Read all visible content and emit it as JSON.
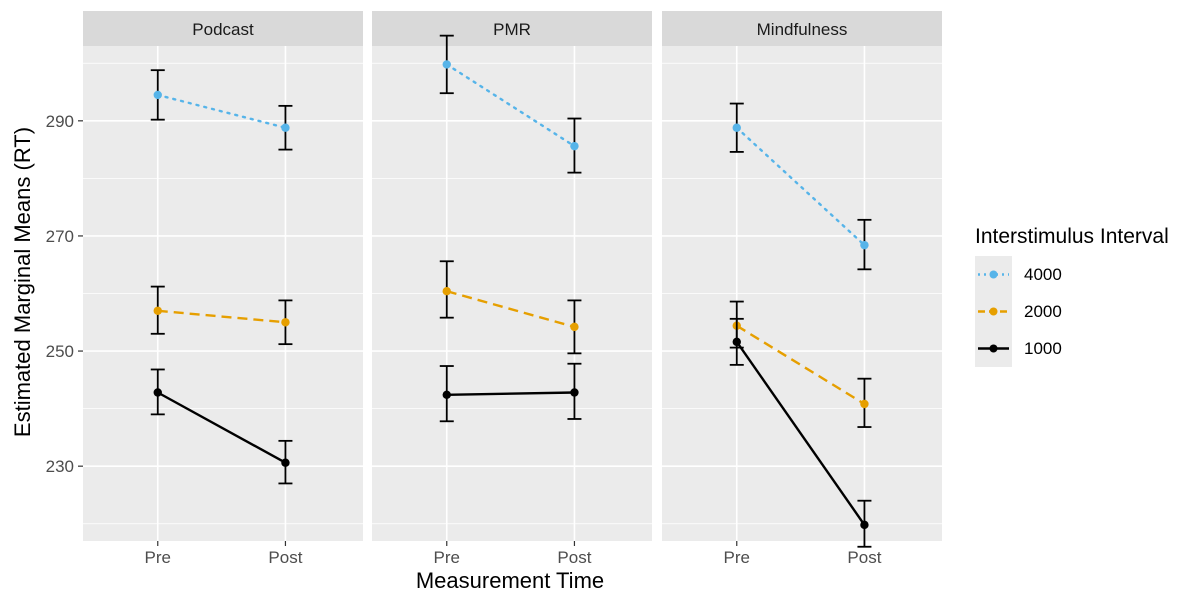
{
  "chart_data": {
    "type": "line",
    "xlabel": "Measurement Time",
    "ylabel": "Estimated Marginal Means (RT)",
    "categories": [
      "Pre",
      "Post"
    ],
    "ylim": [
      217,
      303
    ],
    "yticks": [
      230,
      250,
      270,
      290
    ],
    "legend": {
      "title": "Interstimulus Interval",
      "position": "right",
      "entries": [
        "4000",
        "2000",
        "1000"
      ]
    },
    "series_style": {
      "4000": {
        "color": "#56B4E9",
        "linestyle": "dotted"
      },
      "2000": {
        "color": "#E69F00",
        "linestyle": "dashed"
      },
      "1000": {
        "color": "#000000",
        "linestyle": "solid"
      }
    },
    "panels": [
      {
        "title": "Podcast",
        "series": [
          {
            "name": "4000",
            "values": [
              294.5,
              288.8
            ],
            "lower": [
              290.2,
              285.0
            ],
            "upper": [
              298.8,
              292.6
            ]
          },
          {
            "name": "2000",
            "values": [
              257.0,
              255.0
            ],
            "lower": [
              253.0,
              251.2
            ],
            "upper": [
              261.2,
              258.8
            ]
          },
          {
            "name": "1000",
            "values": [
              242.8,
              230.6
            ],
            "lower": [
              239.0,
              227.0
            ],
            "upper": [
              246.8,
              234.4
            ]
          }
        ]
      },
      {
        "title": "PMR",
        "series": [
          {
            "name": "4000",
            "values": [
              299.8,
              285.6
            ],
            "lower": [
              294.8,
              281.0
            ],
            "upper": [
              304.8,
              290.4
            ]
          },
          {
            "name": "2000",
            "values": [
              260.4,
              254.2
            ],
            "lower": [
              255.8,
              249.6
            ],
            "upper": [
              265.6,
              258.8
            ]
          },
          {
            "name": "1000",
            "values": [
              242.4,
              242.8
            ],
            "lower": [
              237.8,
              238.2
            ],
            "upper": [
              247.4,
              247.8
            ]
          }
        ]
      },
      {
        "title": "Mindfulness",
        "series": [
          {
            "name": "4000",
            "values": [
              288.8,
              268.4
            ],
            "lower": [
              284.6,
              264.2
            ],
            "upper": [
              293.0,
              272.8
            ]
          },
          {
            "name": "2000",
            "values": [
              254.4,
              240.8
            ],
            "lower": [
              250.6,
              236.8
            ],
            "upper": [
              258.6,
              245.2
            ]
          },
          {
            "name": "1000",
            "values": [
              251.6,
              219.8
            ],
            "lower": [
              247.6,
              216.0
            ],
            "upper": [
              255.6,
              224.0
            ]
          }
        ]
      }
    ]
  }
}
